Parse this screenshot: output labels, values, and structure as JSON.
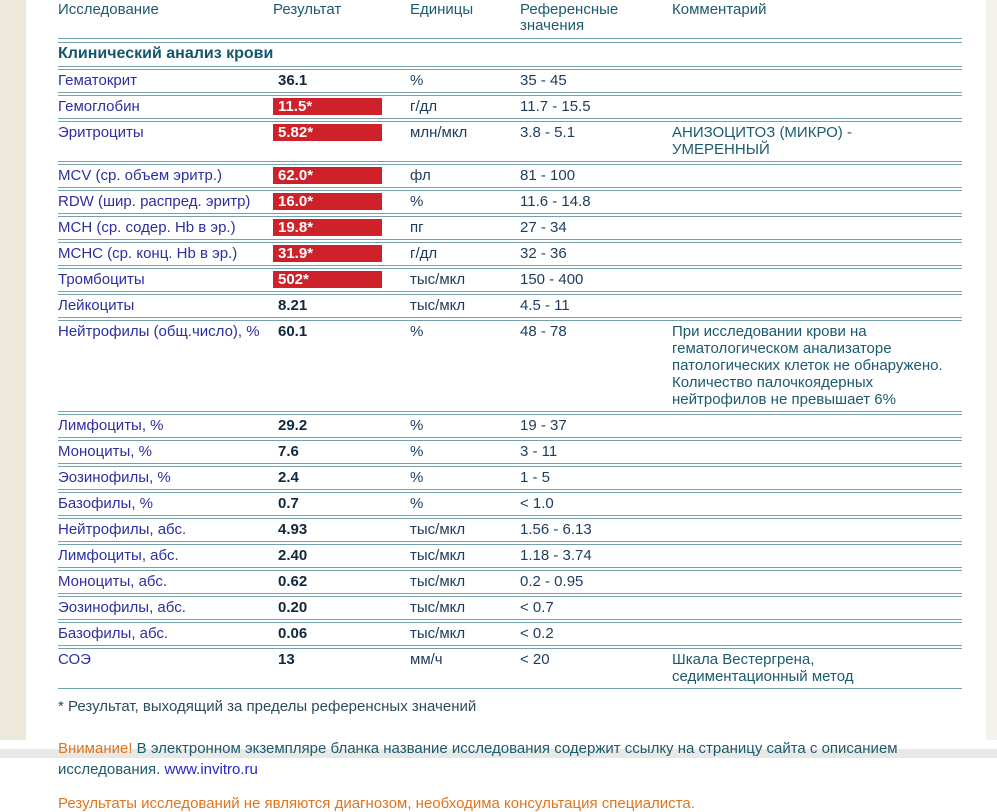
{
  "colors": {
    "flag_red": "#ce2129",
    "name_blue": "#2e2ea3",
    "teal_text": "#1c5a6e",
    "orange_text": "#e0751d",
    "rule_line": "#74a0b0",
    "left_strip": "#ece9db"
  },
  "table": {
    "columns": [
      "Исследование",
      "Результат",
      "Единицы",
      "Референсные значения",
      "Комментарий"
    ],
    "section_title": "Клинический анализ крови",
    "rows": [
      {
        "name": "Гематокрит",
        "result": "36.1",
        "flagged": false,
        "units": "%",
        "reference": "35 - 45",
        "comment": ""
      },
      {
        "name": "Гемоглобин",
        "result": "11.5*",
        "flagged": true,
        "units": "г/дл",
        "reference": "11.7 - 15.5",
        "comment": ""
      },
      {
        "name": "Эритроциты",
        "result": "5.82*",
        "flagged": true,
        "units": "млн/мкл",
        "reference": "3.8 - 5.1",
        "comment": "АНИЗОЦИТОЗ (МИКРО) - УМЕРЕННЫЙ"
      },
      {
        "name": "MCV (ср. объем эритр.)",
        "result": "62.0*",
        "flagged": true,
        "units": "фл",
        "reference": "81 - 100",
        "comment": ""
      },
      {
        "name": "RDW (шир. распред. эритр)",
        "result": "16.0*",
        "flagged": true,
        "units": "%",
        "reference": "11.6 - 14.8",
        "comment": ""
      },
      {
        "name": "MCH (ср. содер. Hb в эр.)",
        "result": "19.8*",
        "flagged": true,
        "units": "пг",
        "reference": "27 - 34",
        "comment": ""
      },
      {
        "name": "MCHC (ср. конц. Hb в эр.)",
        "result": "31.9*",
        "flagged": true,
        "units": "г/дл",
        "reference": "32 - 36",
        "comment": ""
      },
      {
        "name": "Тромбоциты",
        "result": "502*",
        "flagged": true,
        "units": "тыс/мкл",
        "reference": "150 - 400",
        "comment": ""
      },
      {
        "name": "Лейкоциты",
        "result": "8.21",
        "flagged": false,
        "units": "тыс/мкл",
        "reference": "4.5 - 11",
        "comment": ""
      },
      {
        "name": "Нейтрофилы (общ.число), %",
        "result": "60.1",
        "flagged": false,
        "units": "%",
        "reference": "48 - 78",
        "comment": "При исследовании крови на гематологическом анализаторе патологических клеток не обнаружено. Количество палочкоядерных нейтрофилов не превышает 6%"
      },
      {
        "name": "Лимфоциты, %",
        "result": "29.2",
        "flagged": false,
        "units": "%",
        "reference": "19 - 37",
        "comment": ""
      },
      {
        "name": "Моноциты, %",
        "result": "7.6",
        "flagged": false,
        "units": "%",
        "reference": "3 - 11",
        "comment": ""
      },
      {
        "name": "Эозинофилы, %",
        "result": "2.4",
        "flagged": false,
        "units": "%",
        "reference": "1 - 5",
        "comment": ""
      },
      {
        "name": "Базофилы, %",
        "result": "0.7",
        "flagged": false,
        "units": "%",
        "reference": "< 1.0",
        "comment": ""
      },
      {
        "name": "Нейтрофилы, абс.",
        "result": "4.93",
        "flagged": false,
        "units": "тыс/мкл",
        "reference": "1.56 - 6.13",
        "comment": ""
      },
      {
        "name": "Лимфоциты, абс.",
        "result": "2.40",
        "flagged": false,
        "units": "тыс/мкл",
        "reference": "1.18 - 3.74",
        "comment": ""
      },
      {
        "name": "Моноциты, абс.",
        "result": "0.62",
        "flagged": false,
        "units": "тыс/мкл",
        "reference": "0.2 - 0.95",
        "comment": ""
      },
      {
        "name": "Эозинофилы, абс.",
        "result": "0.20",
        "flagged": false,
        "units": "тыс/мкл",
        "reference": "< 0.7",
        "comment": ""
      },
      {
        "name": "Базофилы, абс.",
        "result": "0.06",
        "flagged": false,
        "units": "тыс/мкл",
        "reference": "< 0.2",
        "comment": ""
      },
      {
        "name": "СОЭ",
        "result": "13",
        "flagged": false,
        "units": "мм/ч",
        "reference": "< 20",
        "comment": "Шкала Вестергрена, седиментационный метод"
      }
    ]
  },
  "footer": {
    "footnote": "* Результат, выходящий за пределы референсных значений",
    "warning_label": "Внимание!",
    "warning_text": "В электронном экземпляре бланка название исследования содержит ссылку на страницу сайта с описанием исследования.",
    "link": "www.invitro.ru",
    "disclaimer": "Результаты исследований не являются диагнозом, необходима консультация специалиста."
  }
}
